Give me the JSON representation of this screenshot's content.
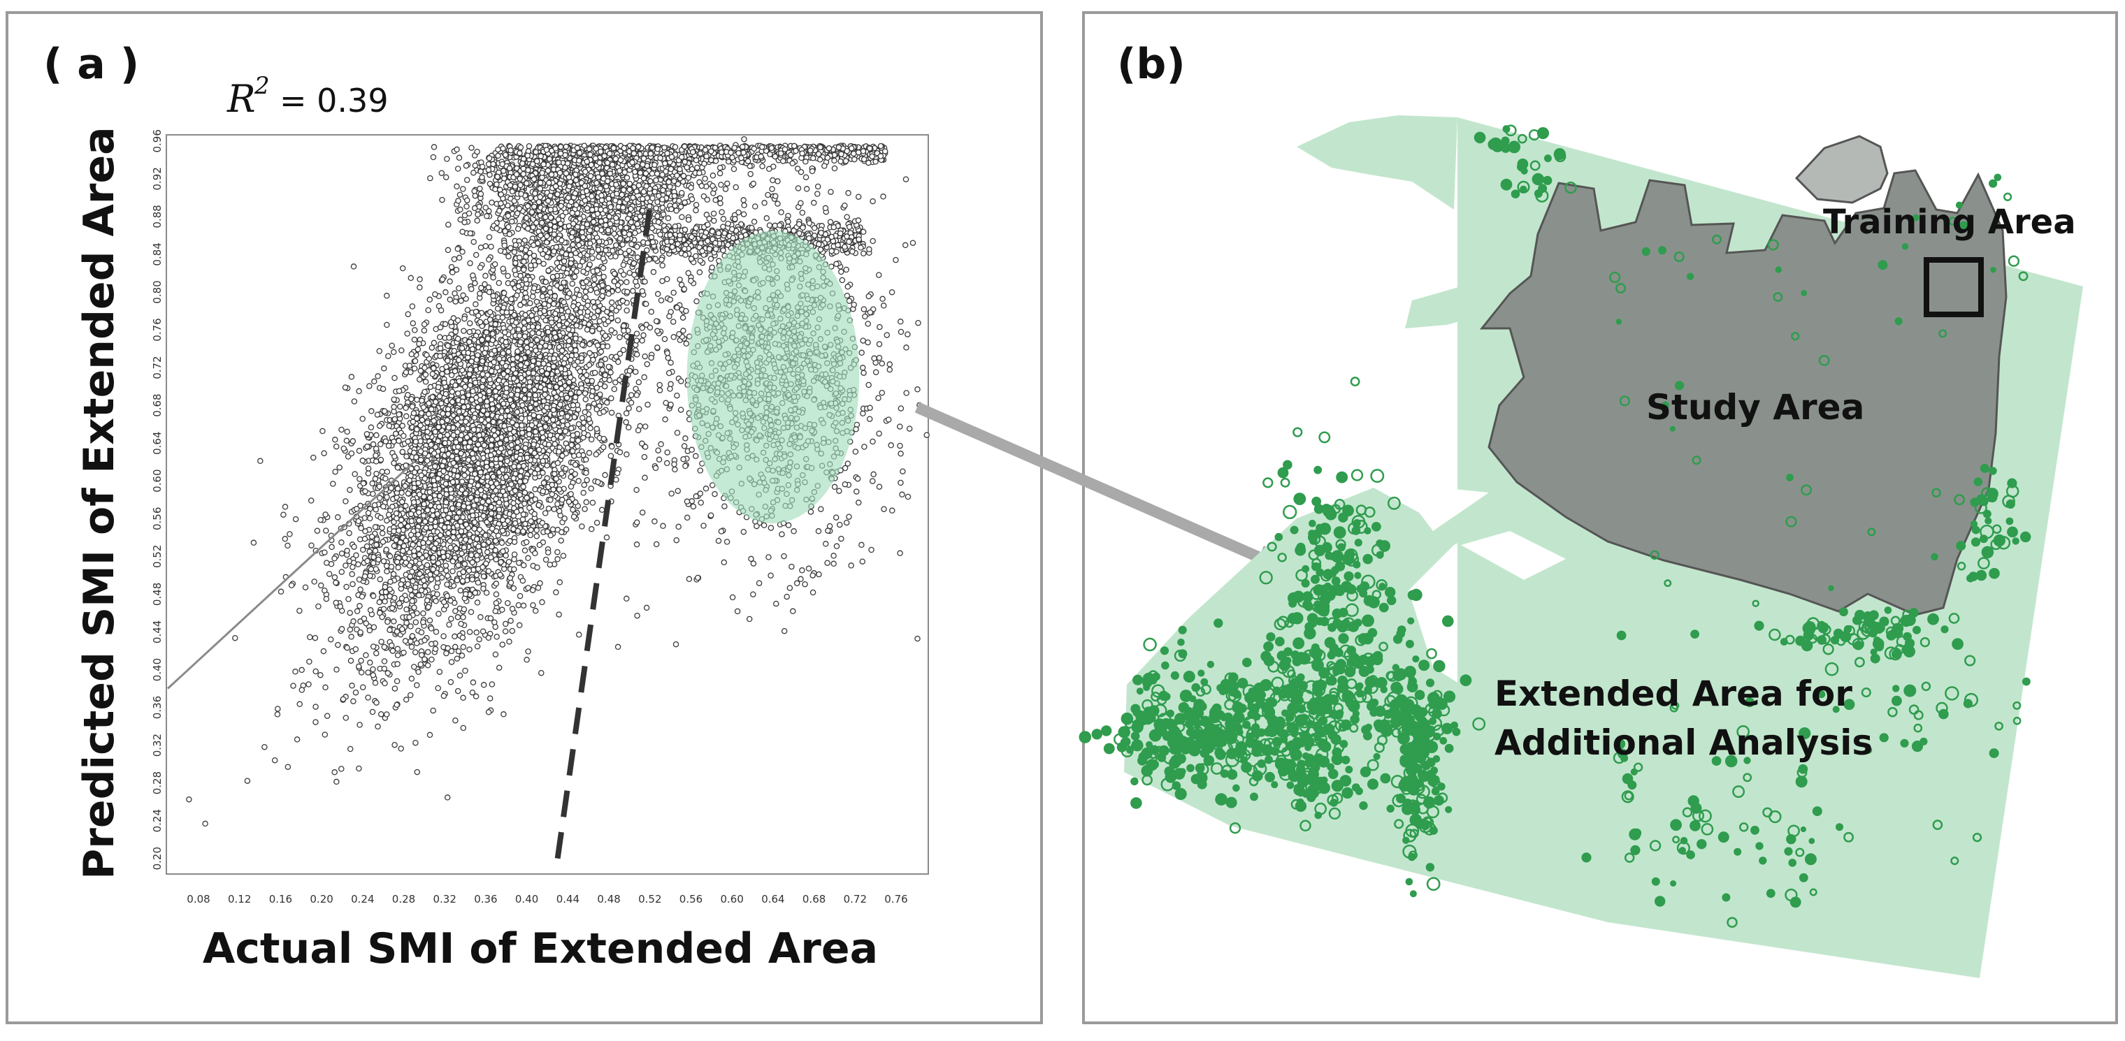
{
  "panel_a": {
    "label": "( a )",
    "r2_symbol": "R",
    "r2_power": "2",
    "r2_text": "= 0.39",
    "xlabel": "Actual SMI of Extended Area",
    "ylabel": "Predicted SMI  of Extended Area"
  },
  "panel_b": {
    "label": "(b)",
    "training_area": "Training Area",
    "study_area": "Study Area",
    "extended_line1": "Extended  Area for",
    "extended_line2": "Additional Analysis"
  },
  "colors": {
    "point": "#3a3a3a",
    "highlight": "#9fdcb9",
    "extended_area": "#c2e6cd",
    "study_area": "#8a918c",
    "green_dots": "#2f9c4e",
    "arrow": "#a9a9a9"
  },
  "chart_data": {
    "type": "scatter",
    "title": "",
    "xlabel": "Actual SMI of Extended Area",
    "ylabel": "Predicted SMI  of Extended Area",
    "xlim": [
      0.05,
      0.79
    ],
    "ylim": [
      0.185,
      0.965
    ],
    "x_ticks": [
      "0.08",
      "0.12",
      "0.16",
      "0.20",
      "0.24",
      "0.28",
      "0.32",
      "0.36",
      "0.40",
      "0.44",
      "0.48",
      "0.52",
      "0.56",
      "0.60",
      "0.64",
      "0.68",
      "0.72",
      "0.76"
    ],
    "y_ticks": [
      "0.20",
      "0.24",
      "0.28",
      "0.32",
      "0.36",
      "0.40",
      "0.44",
      "0.48",
      "0.52",
      "0.56",
      "0.60",
      "0.64",
      "0.68",
      "0.72",
      "0.76",
      "0.80",
      "0.84",
      "0.88",
      "0.92",
      "0.96"
    ],
    "annotation": "R2 = 0.39",
    "clusters": [
      {
        "name": "",
        "center": [
          0.36,
          0.66
        ],
        "spread": [
          0.07,
          0.11
        ],
        "density": "very high"
      },
      {
        "name": "",
        "center": [
          0.45,
          0.88
        ],
        "spread": [
          0.05,
          0.05
        ],
        "density": "very high"
      },
      {
        "name": "",
        "center": [
          0.64,
          0.7
        ],
        "spread": [
          0.07,
          0.1
        ],
        "density": "medium"
      }
    ],
    "highlight_ellipse": {
      "center": [
        0.64,
        0.71
      ],
      "rx": 0.084,
      "ry": 0.155
    },
    "dashed_line": [
      [
        0.43,
        0.2
      ],
      [
        0.52,
        0.89
      ]
    ],
    "regression_line": [
      [
        0.05,
        0.38
      ],
      [
        0.29,
        0.62
      ]
    ]
  }
}
